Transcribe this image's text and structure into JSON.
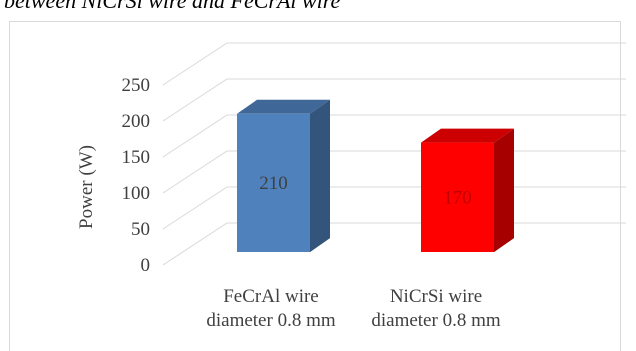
{
  "caption_fragment": "between NiCrSi wire and FeCrAl wire",
  "chart_data": {
    "type": "bar",
    "title": "",
    "xlabel": "",
    "ylabel": "Power (W)",
    "ylim": [
      0,
      250
    ],
    "yticks": [
      "0",
      "50",
      "100",
      "150",
      "200",
      "250"
    ],
    "grid": true,
    "legend": "none",
    "three_d": true,
    "categories": [
      [
        "FeCrAl wire",
        "diameter 0.8 mm"
      ],
      [
        "NiCrSi wire",
        "diameter 0.8 mm"
      ]
    ],
    "values": [
      210,
      170
    ],
    "data_labels": [
      "210",
      "170"
    ],
    "colors": [
      "#4f81bd",
      "#ff0000"
    ]
  }
}
